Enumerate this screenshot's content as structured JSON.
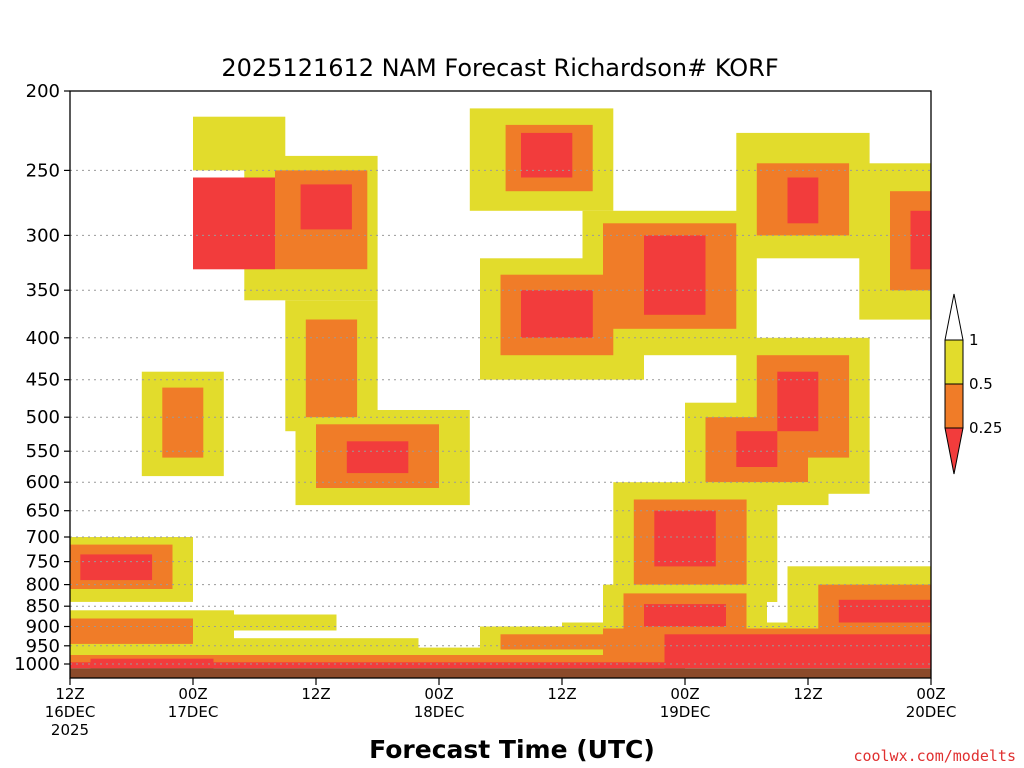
{
  "chart_data": {
    "type": "heatmap",
    "title": "2025121612 NAM Forecast Richardson# KORF",
    "xlabel": "Forecast Time (UTC)",
    "ylabel": "",
    "credit": "coolwx.com/modelts",
    "y_scale": "log",
    "ylim": [
      1040,
      200
    ],
    "y_ticks": [
      200,
      250,
      300,
      350,
      400,
      450,
      500,
      550,
      600,
      650,
      700,
      750,
      800,
      850,
      900,
      950,
      1000
    ],
    "x_hours_range": [
      0,
      84
    ],
    "x_ticks": [
      {
        "hour": 0,
        "lines": [
          "12Z",
          "16DEC",
          "2025"
        ]
      },
      {
        "hour": 12,
        "lines": [
          "00Z",
          "17DEC"
        ]
      },
      {
        "hour": 24,
        "lines": [
          "12Z"
        ]
      },
      {
        "hour": 36,
        "lines": [
          "00Z",
          "18DEC"
        ]
      },
      {
        "hour": 48,
        "lines": [
          "12Z"
        ]
      },
      {
        "hour": 60,
        "lines": [
          "00Z",
          "19DEC"
        ]
      },
      {
        "hour": 72,
        "lines": [
          "12Z"
        ]
      },
      {
        "hour": 84,
        "lines": [
          "00Z",
          "20DEC"
        ]
      }
    ],
    "legend": {
      "placement": "right",
      "levels": [
        "1",
        "0.5",
        "0.25"
      ],
      "bins": [
        {
          "name": "< 0.25",
          "color": "#f23c3c"
        },
        {
          "name": "0.25 - 0.5",
          "color": "#f07c28"
        },
        {
          "name": "0.5 - 1",
          "color": "#e2dc2c"
        },
        {
          "name": "> 1",
          "color": "#ffffff"
        }
      ]
    },
    "colors": {
      "low": "#f23c3c",
      "mid": "#f07c28",
      "high": "#e2dc2c",
      "ground": "#8b4a2a"
    },
    "grid": true,
    "patches": [
      {
        "t": [
          12,
          20
        ],
        "p": [
          255,
          330
        ],
        "bin": "low"
      },
      {
        "t": [
          22.5,
          27.5
        ],
        "p": [
          260,
          295
        ],
        "bin": "low"
      },
      {
        "t": [
          20,
          29
        ],
        "p": [
          250,
          330
        ],
        "bin": "mid"
      },
      {
        "t": [
          17,
          30
        ],
        "p": [
          240,
          360
        ],
        "bin": "high"
      },
      {
        "t": [
          12,
          21
        ],
        "p": [
          215,
          250
        ],
        "bin": "high"
      },
      {
        "t": [
          44,
          49
        ],
        "p": [
          225,
          255
        ],
        "bin": "low"
      },
      {
        "t": [
          42.5,
          51
        ],
        "p": [
          220,
          265
        ],
        "bin": "mid"
      },
      {
        "t": [
          39,
          53
        ],
        "p": [
          210,
          280
        ],
        "bin": "high"
      },
      {
        "t": [
          56,
          62
        ],
        "p": [
          300,
          375
        ],
        "bin": "low"
      },
      {
        "t": [
          52,
          65
        ],
        "p": [
          290,
          390
        ],
        "bin": "mid"
      },
      {
        "t": [
          50,
          67
        ],
        "p": [
          280,
          420
        ],
        "bin": "high"
      },
      {
        "t": [
          70,
          73
        ],
        "p": [
          255,
          290
        ],
        "bin": "low"
      },
      {
        "t": [
          67,
          76
        ],
        "p": [
          245,
          300
        ],
        "bin": "mid"
      },
      {
        "t": [
          65,
          78
        ],
        "p": [
          225,
          320
        ],
        "bin": "high"
      },
      {
        "t": [
          44,
          51
        ],
        "p": [
          350,
          400
        ],
        "bin": "low"
      },
      {
        "t": [
          42,
          53
        ],
        "p": [
          335,
          420
        ],
        "bin": "mid"
      },
      {
        "t": [
          40,
          56
        ],
        "p": [
          320,
          450
        ],
        "bin": "high"
      },
      {
        "t": [
          23,
          28
        ],
        "p": [
          380,
          500
        ],
        "bin": "mid"
      },
      {
        "t": [
          21,
          30
        ],
        "p": [
          360,
          520
        ],
        "bin": "high"
      },
      {
        "t": [
          9,
          13
        ],
        "p": [
          460,
          560
        ],
        "bin": "mid"
      },
      {
        "t": [
          7,
          15
        ],
        "p": [
          440,
          590
        ],
        "bin": "high"
      },
      {
        "t": [
          27,
          33
        ],
        "p": [
          535,
          585
        ],
        "bin": "low"
      },
      {
        "t": [
          24,
          36
        ],
        "p": [
          510,
          610
        ],
        "bin": "mid"
      },
      {
        "t": [
          22,
          39
        ],
        "p": [
          490,
          640
        ],
        "bin": "high"
      },
      {
        "t": [
          65,
          69
        ],
        "p": [
          520,
          575
        ],
        "bin": "low"
      },
      {
        "t": [
          62,
          72
        ],
        "p": [
          500,
          600
        ],
        "bin": "mid"
      },
      {
        "t": [
          60,
          74
        ],
        "p": [
          480,
          640
        ],
        "bin": "high"
      },
      {
        "t": [
          69,
          73
        ],
        "p": [
          440,
          520
        ],
        "bin": "low"
      },
      {
        "t": [
          67,
          76
        ],
        "p": [
          420,
          560
        ],
        "bin": "mid"
      },
      {
        "t": [
          65,
          78
        ],
        "p": [
          400,
          620
        ],
        "bin": "high"
      },
      {
        "t": [
          82,
          84
        ],
        "p": [
          280,
          330
        ],
        "bin": "low"
      },
      {
        "t": [
          80,
          84
        ],
        "p": [
          265,
          350
        ],
        "bin": "mid"
      },
      {
        "t": [
          77,
          84
        ],
        "p": [
          245,
          380
        ],
        "bin": "high"
      },
      {
        "t": [
          57,
          63
        ],
        "p": [
          650,
          760
        ],
        "bin": "low"
      },
      {
        "t": [
          55,
          66
        ],
        "p": [
          630,
          800
        ],
        "bin": "mid"
      },
      {
        "t": [
          53,
          69
        ],
        "p": [
          600,
          840
        ],
        "bin": "high"
      },
      {
        "t": [
          1,
          8
        ],
        "p": [
          735,
          790
        ],
        "bin": "low"
      },
      {
        "t": [
          0,
          10
        ],
        "p": [
          715,
          810
        ],
        "bin": "mid"
      },
      {
        "t": [
          0,
          12
        ],
        "p": [
          700,
          840
        ],
        "bin": "high"
      },
      {
        "t": [
          56,
          64
        ],
        "p": [
          845,
          900
        ],
        "bin": "low"
      },
      {
        "t": [
          54,
          66
        ],
        "p": [
          820,
          920
        ],
        "bin": "mid"
      },
      {
        "t": [
          52,
          68
        ],
        "p": [
          800,
          940
        ],
        "bin": "high"
      },
      {
        "t": [
          75,
          84
        ],
        "p": [
          835,
          890
        ],
        "bin": "low"
      },
      {
        "t": [
          73,
          84
        ],
        "p": [
          800,
          910
        ],
        "bin": "mid"
      },
      {
        "t": [
          70,
          84
        ],
        "p": [
          760,
          930
        ],
        "bin": "high"
      },
      {
        "t": [
          14,
          26
        ],
        "p": [
          870,
          910
        ],
        "bin": "high"
      },
      {
        "t": [
          0,
          12
        ],
        "p": [
          880,
          945
        ],
        "bin": "mid"
      },
      {
        "t": [
          0,
          16
        ],
        "p": [
          860,
          965
        ],
        "bin": "high"
      },
      {
        "t": [
          42,
          52
        ],
        "p": [
          920,
          960
        ],
        "bin": "mid"
      },
      {
        "t": [
          40,
          55
        ],
        "p": [
          900,
          975
        ],
        "bin": "high"
      },
      {
        "t": [
          16,
          34
        ],
        "p": [
          930,
          975
        ],
        "bin": "high"
      },
      {
        "t": [
          58,
          84
        ],
        "p": [
          920,
          1012
        ],
        "bin": "low"
      },
      {
        "t": [
          52,
          84
        ],
        "p": [
          905,
          1000
        ],
        "bin": "mid"
      },
      {
        "t": [
          48,
          84
        ],
        "p": [
          890,
          990
        ],
        "bin": "high"
      },
      {
        "t": [
          0,
          60
        ],
        "p": [
          995,
          1012
        ],
        "bin": "low"
      },
      {
        "t": [
          0,
          60
        ],
        "p": [
          975,
          996
        ],
        "bin": "mid"
      },
      {
        "t": [
          0,
          60
        ],
        "p": [
          955,
          980
        ],
        "bin": "high"
      },
      {
        "t": [
          2,
          14
        ],
        "p": [
          985,
          1012
        ],
        "bin": "low"
      }
    ]
  }
}
